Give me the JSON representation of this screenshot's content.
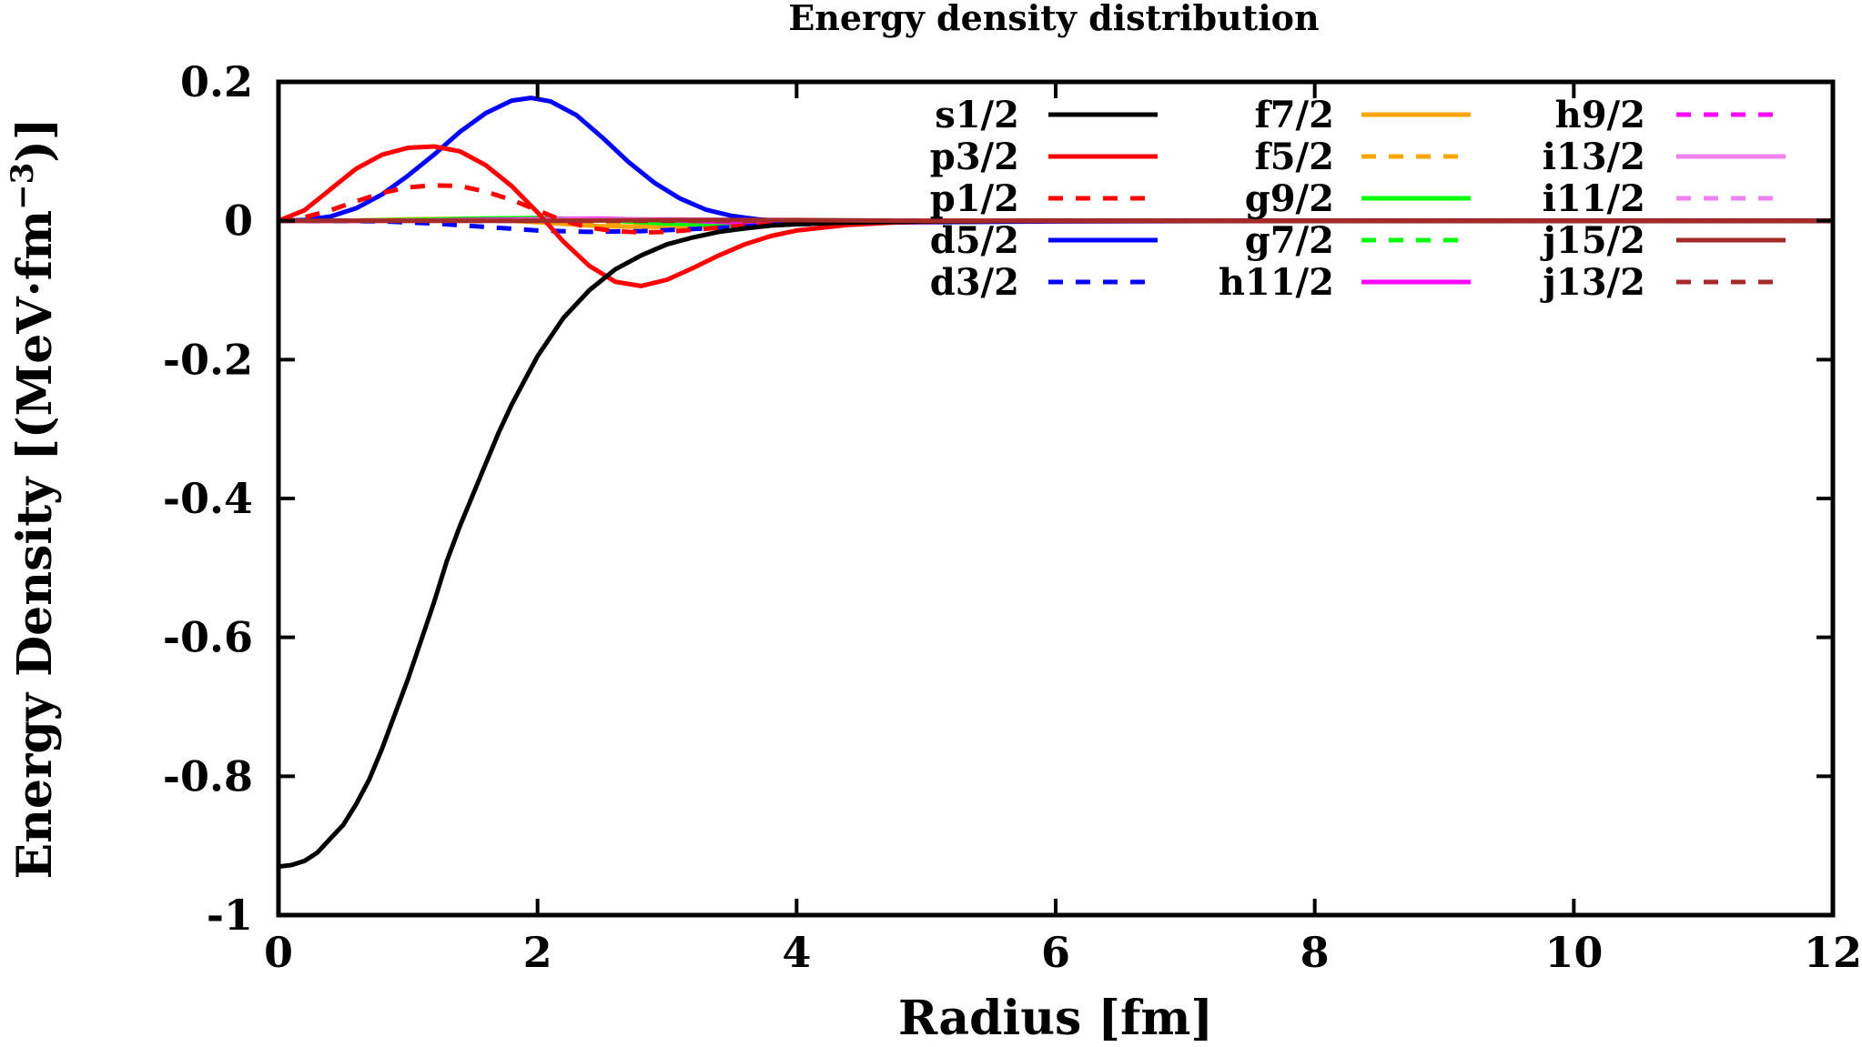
{
  "chart_data": {
    "type": "line",
    "title": "Energy density distribution",
    "xlabel": "Radius [fm]",
    "ylabel": "Energy Density [(MeV·fm",
    "ylabel_sup": "−3",
    "ylabel_end": ")]",
    "xlim": [
      0,
      12
    ],
    "ylim": [
      -1,
      0.2
    ],
    "x_ticks": [
      0,
      2,
      4,
      6,
      8,
      10,
      12
    ],
    "x_tick_labels": [
      "0",
      "2",
      "4",
      "6",
      "8",
      "10",
      "12"
    ],
    "y_ticks": [
      -1,
      -0.8,
      -0.6,
      -0.4,
      -0.2,
      0,
      0.2
    ],
    "y_tick_labels": [
      "-1",
      "-0.8",
      "-0.6",
      "-0.4",
      "-0.2",
      "0",
      "0.2"
    ],
    "grid": false,
    "legend_position": "top-right",
    "series": [
      {
        "name": "s1/2",
        "color": "#000000",
        "dash": "solid",
        "x": [
          0,
          0.1,
          0.2,
          0.3,
          0.4,
          0.5,
          0.6,
          0.7,
          0.8,
          0.9,
          1.0,
          1.1,
          1.2,
          1.3,
          1.4,
          1.5,
          1.6,
          1.7,
          1.8,
          1.9,
          2.0,
          2.2,
          2.4,
          2.6,
          2.8,
          3.0,
          3.2,
          3.4,
          3.6,
          3.8,
          4.0,
          4.3,
          4.6,
          5.0,
          5.5,
          6.0,
          8.0,
          10.0,
          12.0
        ],
        "y": [
          -0.93,
          -0.928,
          -0.922,
          -0.91,
          -0.89,
          -0.87,
          -0.84,
          -0.805,
          -0.76,
          -0.71,
          -0.66,
          -0.605,
          -0.55,
          -0.49,
          -0.44,
          -0.395,
          -0.35,
          -0.305,
          -0.265,
          -0.23,
          -0.195,
          -0.14,
          -0.1,
          -0.07,
          -0.05,
          -0.034,
          -0.024,
          -0.016,
          -0.011,
          -0.007,
          -0.005,
          -0.003,
          -0.002,
          -0.001,
          -0.0005,
          0,
          0,
          0,
          0
        ]
      },
      {
        "name": "p3/2",
        "color": "#ff0000",
        "dash": "solid",
        "x": [
          0,
          0.2,
          0.4,
          0.6,
          0.8,
          1.0,
          1.2,
          1.4,
          1.6,
          1.8,
          2.0,
          2.2,
          2.4,
          2.6,
          2.8,
          3.0,
          3.2,
          3.4,
          3.6,
          3.8,
          4.0,
          4.4,
          4.8,
          5.2,
          6.0,
          8.0,
          10.0,
          12.0
        ],
        "y": [
          0,
          0.015,
          0.045,
          0.075,
          0.095,
          0.105,
          0.107,
          0.1,
          0.08,
          0.05,
          0.012,
          -0.03,
          -0.065,
          -0.088,
          -0.094,
          -0.085,
          -0.068,
          -0.05,
          -0.034,
          -0.022,
          -0.014,
          -0.006,
          -0.002,
          -0.001,
          0,
          0,
          0,
          0
        ]
      },
      {
        "name": "p1/2",
        "color": "#ff0000",
        "dash": "dashed",
        "x": [
          0,
          0.2,
          0.4,
          0.6,
          0.8,
          1.0,
          1.2,
          1.4,
          1.6,
          1.8,
          2.0,
          2.2,
          2.4,
          2.6,
          2.8,
          3.0,
          3.2,
          3.4,
          3.6,
          3.8,
          4.0,
          4.5,
          5.0,
          6.0,
          8.0,
          10.0,
          12.0
        ],
        "y": [
          0,
          0.005,
          0.015,
          0.028,
          0.04,
          0.048,
          0.051,
          0.05,
          0.042,
          0.03,
          0.015,
          0.0,
          -0.01,
          -0.015,
          -0.017,
          -0.016,
          -0.013,
          -0.01,
          -0.007,
          -0.005,
          -0.003,
          -0.001,
          0,
          0,
          0,
          0,
          0
        ]
      },
      {
        "name": "d5/2",
        "color": "#0000ff",
        "dash": "solid",
        "x": [
          0,
          0.2,
          0.4,
          0.6,
          0.8,
          1.0,
          1.2,
          1.4,
          1.6,
          1.8,
          1.95,
          2.1,
          2.3,
          2.5,
          2.7,
          2.9,
          3.1,
          3.3,
          3.5,
          3.7,
          4.0,
          4.4,
          5.0,
          6.0,
          8.0,
          10.0,
          12.0
        ],
        "y": [
          0,
          0.001,
          0.006,
          0.018,
          0.038,
          0.065,
          0.095,
          0.128,
          0.155,
          0.173,
          0.177,
          0.172,
          0.152,
          0.12,
          0.085,
          0.055,
          0.032,
          0.016,
          0.007,
          0.002,
          -0.002,
          -0.003,
          -0.002,
          -0.001,
          0,
          0,
          0
        ]
      },
      {
        "name": "d3/2",
        "color": "#0000ff",
        "dash": "dashed",
        "x": [
          0,
          0.4,
          0.8,
          1.2,
          1.6,
          2.0,
          2.4,
          2.8,
          3.2,
          3.6,
          4.0,
          4.5,
          5.0,
          6.0,
          8.0,
          10.0,
          12.0
        ],
        "y": [
          0,
          0,
          -0.001,
          -0.004,
          -0.009,
          -0.014,
          -0.016,
          -0.015,
          -0.012,
          -0.008,
          -0.005,
          -0.003,
          -0.001,
          0,
          0,
          0,
          0
        ]
      },
      {
        "name": "f7/2",
        "color": "#ffa500",
        "dash": "solid",
        "x": [
          0,
          0.5,
          1.0,
          1.5,
          2.0,
          2.5,
          3.0,
          3.5,
          4.0,
          4.5,
          5.0,
          6.0,
          8.0,
          10.0,
          12.0
        ],
        "y": [
          0,
          0,
          0.002,
          0.003,
          -0.002,
          -0.008,
          -0.009,
          -0.006,
          -0.003,
          -0.001,
          0,
          0,
          0,
          0,
          0
        ]
      },
      {
        "name": "f5/2",
        "color": "#ffa500",
        "dash": "dashed",
        "x": [
          0,
          0.5,
          1.0,
          1.5,
          2.0,
          2.5,
          3.0,
          3.5,
          4.0,
          4.5,
          5.0,
          6.0,
          8.0,
          10.0,
          12.0
        ],
        "y": [
          0,
          0,
          0.001,
          0.002,
          0.001,
          -0.002,
          -0.004,
          -0.003,
          -0.002,
          -0.001,
          0,
          0,
          0,
          0,
          0
        ]
      },
      {
        "name": "g9/2",
        "color": "#00ff00",
        "dash": "solid",
        "x": [
          0,
          0.5,
          1.0,
          1.5,
          2.0,
          2.5,
          3.0,
          3.5,
          4.0,
          4.5,
          5.0,
          6.0,
          8.0,
          10.0,
          12.0
        ],
        "y": [
          0,
          0,
          0.001,
          0.003,
          0.004,
          0.001,
          -0.004,
          -0.006,
          -0.004,
          -0.002,
          -0.001,
          0,
          0,
          0,
          0
        ]
      },
      {
        "name": "g7/2",
        "color": "#00ff00",
        "dash": "dashed",
        "x": [
          0,
          0.5,
          1.0,
          1.5,
          2.0,
          2.5,
          3.0,
          3.5,
          4.0,
          4.5,
          5.0,
          6.0,
          8.0,
          10.0,
          12.0
        ],
        "y": [
          0,
          0,
          0,
          0.001,
          0.002,
          0.001,
          -0.001,
          -0.002,
          -0.002,
          -0.001,
          0,
          0,
          0,
          0,
          0
        ]
      },
      {
        "name": "h11/2",
        "color": "#ff00ff",
        "dash": "solid",
        "x": [
          0,
          0.5,
          1.0,
          1.5,
          2.0,
          2.5,
          3.0,
          3.5,
          4.0,
          4.5,
          5.0,
          6.0,
          8.0,
          10.0,
          12.0
        ],
        "y": [
          0,
          0,
          0,
          0.001,
          0.002,
          0.003,
          0.001,
          -0.002,
          -0.003,
          -0.002,
          -0.001,
          0,
          0,
          0,
          0
        ]
      },
      {
        "name": "h9/2",
        "color": "#ff00ff",
        "dash": "dashed",
        "x": [
          0,
          0.5,
          1.0,
          1.5,
          2.0,
          2.5,
          3.0,
          3.5,
          4.0,
          4.5,
          5.0,
          6.0,
          8.0,
          10.0,
          12.0
        ],
        "y": [
          0,
          0,
          0,
          0,
          0.001,
          0.001,
          0.001,
          0,
          -0.001,
          -0.001,
          0,
          0,
          0,
          0,
          0
        ]
      },
      {
        "name": "i13/2",
        "color": "#ee82ee",
        "dash": "solid",
        "x": [
          0,
          0.5,
          1.0,
          1.5,
          2.0,
          2.5,
          3.0,
          3.5,
          4.0,
          4.5,
          5.0,
          6.0,
          8.0,
          10.0,
          12.0
        ],
        "y": [
          0,
          0,
          0,
          0,
          0.001,
          0.002,
          0.002,
          0.001,
          -0.001,
          -0.001,
          -0.001,
          0,
          0,
          0,
          0
        ]
      },
      {
        "name": "i11/2",
        "color": "#ee82ee",
        "dash": "dashed",
        "x": [
          0,
          0.5,
          1.0,
          1.5,
          2.0,
          2.5,
          3.0,
          3.5,
          4.0,
          4.5,
          5.0,
          6.0,
          8.0,
          10.0,
          12.0
        ],
        "y": [
          0,
          0,
          0,
          0,
          0,
          0.001,
          0.001,
          0.001,
          0,
          0,
          0,
          0,
          0,
          0,
          0
        ]
      },
      {
        "name": "j15/2",
        "color": "#a52a2a",
        "dash": "solid",
        "x": [
          0,
          1.0,
          2.0,
          3.0,
          4.0,
          5.0,
          6.0,
          8.0,
          10.0,
          12.0
        ],
        "y": [
          0,
          0,
          0,
          0.001,
          0.001,
          0,
          0,
          0,
          0,
          0
        ]
      },
      {
        "name": "j13/2",
        "color": "#a52a2a",
        "dash": "dashed",
        "x": [
          0,
          1.0,
          2.0,
          3.0,
          4.0,
          5.0,
          6.0,
          8.0,
          10.0,
          12.0
        ],
        "y": [
          0,
          0,
          0,
          0,
          0,
          0,
          0,
          0,
          0,
          0
        ]
      }
    ]
  }
}
